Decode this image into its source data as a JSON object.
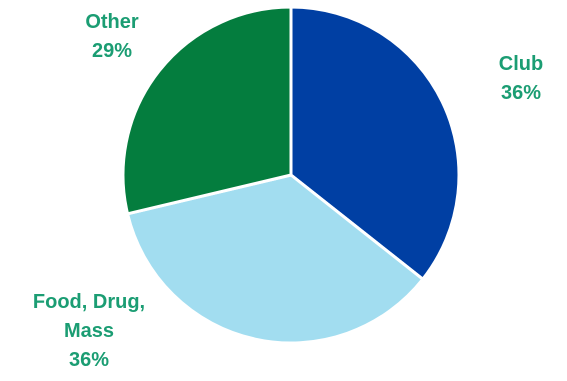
{
  "chart_data": {
    "type": "pie",
    "categories": [
      "Club",
      "Food, Drug, Mass",
      "Other"
    ],
    "values": [
      36,
      36,
      29
    ],
    "value_labels": [
      "36%",
      "36%",
      "29%"
    ],
    "colors": [
      "#003fa3",
      "#a2ddf0",
      "#047d3e"
    ],
    "label_color": "#1b9d73",
    "start_angle_deg": 0,
    "direction": "clockwise",
    "legend": "none"
  }
}
